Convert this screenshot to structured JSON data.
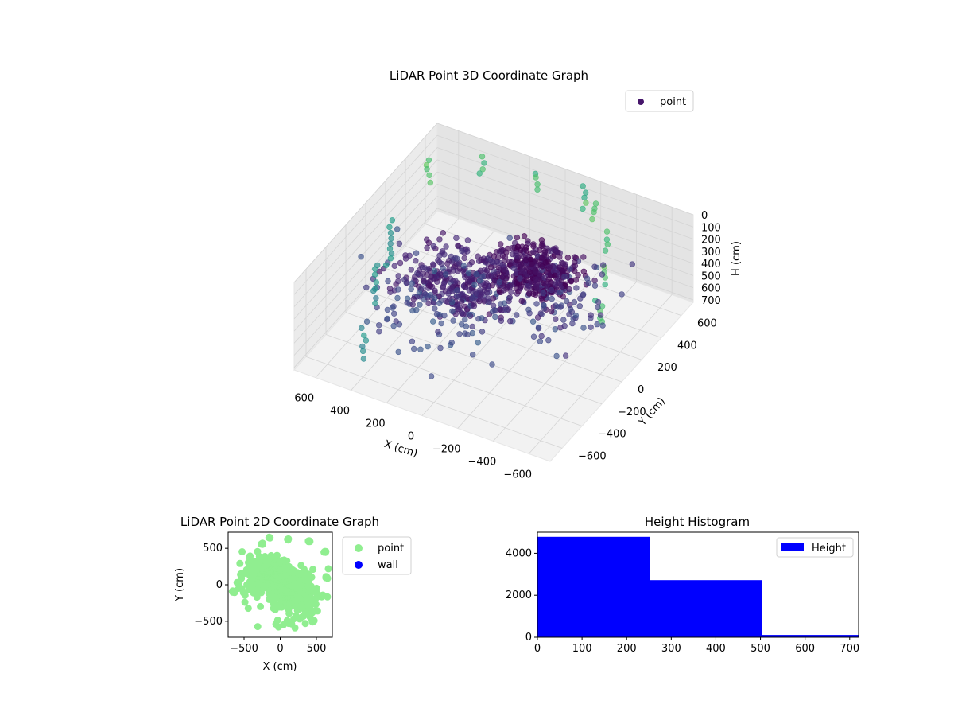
{
  "chart_data": [
    {
      "type": "scatter3d",
      "title": "LiDAR Point 3D Coordinate Graph",
      "xlabel": "X (cm)",
      "ylabel": "Y (cm)",
      "zlabel": "H (cm)",
      "xticks": [
        -600,
        -400,
        -200,
        0,
        200,
        400,
        600
      ],
      "yticks": [
        -600,
        -400,
        -200,
        0,
        200,
        400,
        600
      ],
      "zticks": [
        0,
        100,
        200,
        300,
        400,
        500,
        600,
        700
      ],
      "xlim": [
        -720,
        720
      ],
      "ylim": [
        -720,
        720
      ],
      "zlim": [
        0,
        720
      ],
      "z_inverted": true,
      "colormap": "viridis",
      "legend": [
        "point"
      ],
      "legend_position": "upper-right",
      "grid": true,
      "pane_color": "#f2f2f2",
      "clusters": [
        {
          "cx": -130,
          "cy": 180,
          "cz": 290,
          "sx": 110,
          "sy": 90,
          "sz": 50,
          "n": 380,
          "cv": 0.04
        },
        {
          "cx": 150,
          "cy": -50,
          "cz": 300,
          "sx": 170,
          "sy": 120,
          "sz": 55,
          "n": 330,
          "cv": 0.1
        },
        {
          "cx": -300,
          "cy": 120,
          "cz": 330,
          "sx": 140,
          "sy": 150,
          "sz": 90,
          "n": 90,
          "cv": 0.18
        },
        {
          "cx": 250,
          "cy": -250,
          "cz": 330,
          "sx": 140,
          "sy": 150,
          "sz": 90,
          "n": 70,
          "cv": 0.22
        },
        {
          "cx": 0,
          "cy": -100,
          "cz": 420,
          "sx": 250,
          "sy": 250,
          "sz": 120,
          "n": 50,
          "cv": 0.25
        }
      ],
      "vertical_lines": [
        {
          "x": -650,
          "y": -100,
          "zmin": 0,
          "zmax": 180,
          "cv": 0.7
        },
        {
          "x": -550,
          "y": 150,
          "zmin": 0,
          "zmax": 160,
          "cv": 0.7
        },
        {
          "x": -420,
          "y": 380,
          "zmin": 0,
          "zmax": 170,
          "cv": 0.7
        },
        {
          "x": -250,
          "y": 560,
          "zmin": 0,
          "zmax": 150,
          "cv": 0.7
        },
        {
          "x": 100,
          "y": 620,
          "zmin": 0,
          "zmax": 170,
          "cv": 0.7
        },
        {
          "x": 400,
          "y": 600,
          "zmin": 0,
          "zmax": 160,
          "cv": 0.7
        },
        {
          "x": 620,
          "y": 450,
          "zmin": 0,
          "zmax": 180,
          "cv": 0.7
        },
        {
          "x": 640,
          "y": 100,
          "zmin": 200,
          "zmax": 600,
          "cv": 0.55
        },
        {
          "x": 580,
          "y": -150,
          "zmin": 300,
          "zmax": 650,
          "cv": 0.5
        },
        {
          "x": 450,
          "y": -500,
          "zmin": 450,
          "zmax": 700,
          "cv": 0.5
        },
        {
          "x": -150,
          "y": 650,
          "zmin": 0,
          "zmax": 180,
          "cv": 0.7
        }
      ]
    },
    {
      "type": "scatter",
      "title": "LiDAR Point 2D Coordinate Graph",
      "xlabel": "X (cm)",
      "ylabel": "Y (cm)",
      "xticks": [
        -500,
        0,
        500
      ],
      "yticks": [
        -500,
        0,
        500
      ],
      "xlim": [
        -720,
        720
      ],
      "ylim": [
        -720,
        720
      ],
      "legend_position": "outside-right",
      "series": [
        {
          "name": "point",
          "color": "#90ee90"
        },
        {
          "name": "wall",
          "color": "#0000ff"
        }
      ]
    },
    {
      "type": "bar",
      "title": "Height Histogram",
      "bins": [
        [
          0,
          252
        ],
        [
          252,
          504
        ],
        [
          504,
          756
        ]
      ],
      "values": [
        4780,
        2720,
        110
      ],
      "xticks": [
        0,
        100,
        200,
        300,
        400,
        500,
        600,
        700
      ],
      "yticks": [
        0,
        2000,
        4000
      ],
      "xlim": [
        0,
        720
      ],
      "ylim": [
        0,
        5000
      ],
      "color": "#0000ff",
      "legend": [
        "Height"
      ],
      "legend_position": "upper-right"
    }
  ]
}
